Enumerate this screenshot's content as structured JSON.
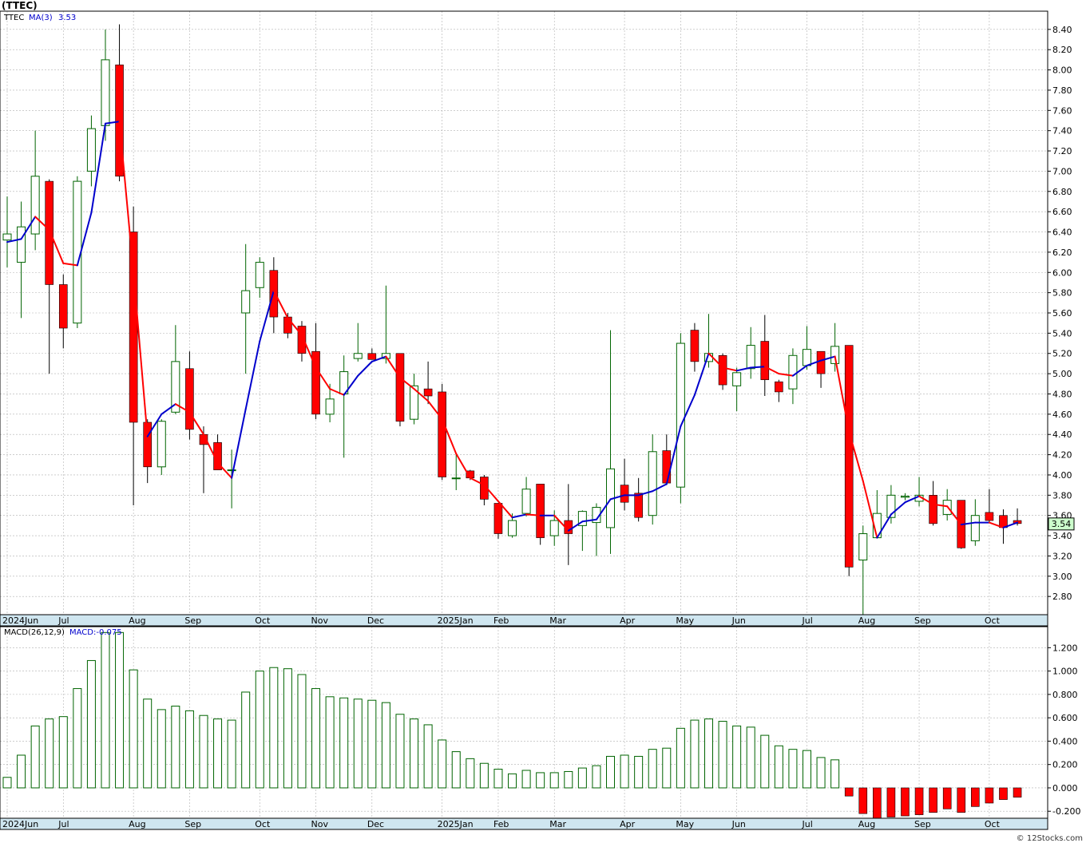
{
  "header": {
    "title": "(TTEC)",
    "legend_symbol": "TTEC",
    "legend_ma_label": "MA(3)",
    "legend_ma_value": "3.53",
    "macd_label": "MACD(26,12,9)",
    "macd_value_label": "MACD:-0.075",
    "last_price_badge": "3.54",
    "watermark": "© 12Stocks.com"
  },
  "colors": {
    "up_candle": "#006400",
    "down_candle": "#ff0000",
    "ma_up": "#0000cc",
    "ma_down": "#ff0000",
    "grid": "#b0b0b0",
    "axis_band": "#cfe6f0",
    "badge_fill": "#ccffcc"
  },
  "chart_data": [
    {
      "type": "candlestick",
      "title": "(TTEC)",
      "ylim": [
        2.62,
        8.58
      ],
      "y_ticks": [
        "8.40",
        "8.20",
        "8.00",
        "7.80",
        "7.60",
        "7.40",
        "7.20",
        "7.00",
        "6.80",
        "6.60",
        "6.40",
        "6.20",
        "6.00",
        "5.80",
        "5.60",
        "5.40",
        "5.20",
        "5.00",
        "4.80",
        "4.60",
        "4.40",
        "4.20",
        "4.00",
        "3.80",
        "3.60",
        "3.40",
        "3.20",
        "3.00",
        "2.80"
      ],
      "x_labels": [
        {
          "label": "2024Jun",
          "week": 0
        },
        {
          "label": "Jul",
          "week": 4
        },
        {
          "label": "Aug",
          "week": 9
        },
        {
          "label": "Sep",
          "week": 13
        },
        {
          "label": "Oct",
          "week": 18
        },
        {
          "label": "Nov",
          "week": 22
        },
        {
          "label": "Dec",
          "week": 26
        },
        {
          "label": "2025Jan",
          "week": 31
        },
        {
          "label": "Feb",
          "week": 35
        },
        {
          "label": "Mar",
          "week": 39
        },
        {
          "label": "Apr",
          "week": 44
        },
        {
          "label": "May",
          "week": 48
        },
        {
          "label": "Jun",
          "week": 52
        },
        {
          "label": "Jul",
          "week": 57
        },
        {
          "label": "Aug",
          "week": 61
        },
        {
          "label": "Sep",
          "week": 65
        },
        {
          "label": "Oct",
          "week": 70
        }
      ],
      "weeks": [
        {
          "o": 6.32,
          "h": 6.75,
          "l": 6.05,
          "c": 6.38
        },
        {
          "o": 6.1,
          "h": 6.7,
          "l": 5.55,
          "c": 6.45
        },
        {
          "o": 6.38,
          "h": 7.4,
          "l": 6.22,
          "c": 6.95
        },
        {
          "o": 6.9,
          "h": 6.92,
          "l": 5.0,
          "c": 5.88
        },
        {
          "o": 5.88,
          "h": 5.98,
          "l": 5.25,
          "c": 5.45
        },
        {
          "o": 5.5,
          "h": 6.95,
          "l": 5.45,
          "c": 6.9
        },
        {
          "o": 7.0,
          "h": 7.55,
          "l": 6.85,
          "c": 7.42
        },
        {
          "o": 7.45,
          "h": 8.4,
          "l": 7.3,
          "c": 8.1
        },
        {
          "o": 8.05,
          "h": 8.45,
          "l": 6.9,
          "c": 6.95
        },
        {
          "o": 6.4,
          "h": 6.65,
          "l": 3.7,
          "c": 4.52
        },
        {
          "o": 4.52,
          "h": 4.55,
          "l": 3.92,
          "c": 4.08
        },
        {
          "o": 4.08,
          "h": 4.55,
          "l": 4.0,
          "c": 4.53
        },
        {
          "o": 4.62,
          "h": 5.48,
          "l": 4.6,
          "c": 5.12
        },
        {
          "o": 5.05,
          "h": 5.22,
          "l": 4.35,
          "c": 4.45
        },
        {
          "o": 4.4,
          "h": 4.48,
          "l": 3.82,
          "c": 4.3
        },
        {
          "o": 4.32,
          "h": 4.4,
          "l": 4.05,
          "c": 4.05
        },
        {
          "o": 4.05,
          "h": 4.25,
          "l": 3.67,
          "c": 4.05
        },
        {
          "o": 5.6,
          "h": 6.28,
          "l": 5.0,
          "c": 5.82
        },
        {
          "o": 5.85,
          "h": 6.15,
          "l": 5.75,
          "c": 6.1
        },
        {
          "o": 6.02,
          "h": 6.15,
          "l": 5.4,
          "c": 5.56
        },
        {
          "o": 5.56,
          "h": 5.6,
          "l": 5.35,
          "c": 5.4
        },
        {
          "o": 5.47,
          "h": 5.52,
          "l": 5.12,
          "c": 5.2
        },
        {
          "o": 5.22,
          "h": 5.5,
          "l": 4.55,
          "c": 4.6
        },
        {
          "o": 4.6,
          "h": 4.9,
          "l": 4.52,
          "c": 4.75
        },
        {
          "o": 4.8,
          "h": 5.18,
          "l": 4.17,
          "c": 5.02
        },
        {
          "o": 5.15,
          "h": 5.5,
          "l": 5.12,
          "c": 5.2
        },
        {
          "o": 5.2,
          "h": 5.25,
          "l": 5.16,
          "c": 5.14
        },
        {
          "o": 5.15,
          "h": 5.87,
          "l": 5.1,
          "c": 5.2
        },
        {
          "o": 5.2,
          "h": 5.2,
          "l": 4.48,
          "c": 4.53
        },
        {
          "o": 4.55,
          "h": 5.0,
          "l": 4.5,
          "c": 4.88
        },
        {
          "o": 4.85,
          "h": 5.12,
          "l": 4.7,
          "c": 4.78
        },
        {
          "o": 4.82,
          "h": 4.9,
          "l": 3.95,
          "c": 3.98
        },
        {
          "o": 3.97,
          "h": 4.2,
          "l": 3.85,
          "c": 3.97
        },
        {
          "o": 4.04,
          "h": 4.05,
          "l": 3.95,
          "c": 3.97
        },
        {
          "o": 3.98,
          "h": 4.0,
          "l": 3.7,
          "c": 3.76
        },
        {
          "o": 3.72,
          "h": 3.72,
          "l": 3.37,
          "c": 3.42
        },
        {
          "o": 3.4,
          "h": 3.62,
          "l": 3.38,
          "c": 3.55
        },
        {
          "o": 3.62,
          "h": 3.98,
          "l": 3.59,
          "c": 3.86
        },
        {
          "o": 3.91,
          "h": 3.91,
          "l": 3.31,
          "c": 3.38
        },
        {
          "o": 3.4,
          "h": 3.65,
          "l": 3.3,
          "c": 3.55
        },
        {
          "o": 3.55,
          "h": 3.91,
          "l": 3.11,
          "c": 3.42
        },
        {
          "o": 3.5,
          "h": 3.65,
          "l": 3.25,
          "c": 3.64
        },
        {
          "o": 3.53,
          "h": 3.72,
          "l": 3.2,
          "c": 3.68
        },
        {
          "o": 3.48,
          "h": 5.43,
          "l": 3.22,
          "c": 4.06
        },
        {
          "o": 3.9,
          "h": 4.16,
          "l": 3.65,
          "c": 3.73
        },
        {
          "o": 3.82,
          "h": 3.97,
          "l": 3.54,
          "c": 3.58
        },
        {
          "o": 3.6,
          "h": 4.4,
          "l": 3.51,
          "c": 4.23
        },
        {
          "o": 4.24,
          "h": 4.4,
          "l": 3.9,
          "c": 3.92
        },
        {
          "o": 3.88,
          "h": 5.4,
          "l": 3.72,
          "c": 5.3
        },
        {
          "o": 5.43,
          "h": 5.5,
          "l": 5.02,
          "c": 5.12
        },
        {
          "o": 5.12,
          "h": 5.59,
          "l": 5.06,
          "c": 5.2
        },
        {
          "o": 5.18,
          "h": 5.2,
          "l": 4.84,
          "c": 4.89
        },
        {
          "o": 4.88,
          "h": 5.06,
          "l": 4.63,
          "c": 5.01
        },
        {
          "o": 5.05,
          "h": 5.46,
          "l": 4.95,
          "c": 5.28
        },
        {
          "o": 5.32,
          "h": 5.58,
          "l": 4.78,
          "c": 4.94
        },
        {
          "o": 4.92,
          "h": 4.94,
          "l": 4.72,
          "c": 4.82
        },
        {
          "o": 4.85,
          "h": 5.25,
          "l": 4.7,
          "c": 5.18
        },
        {
          "o": 5.08,
          "h": 5.47,
          "l": 5.04,
          "c": 5.24
        },
        {
          "o": 5.22,
          "h": 5.22,
          "l": 4.86,
          "c": 5.0
        },
        {
          "o": 5.1,
          "h": 5.5,
          "l": 5.02,
          "c": 5.27
        },
        {
          "o": 5.28,
          "h": 5.28,
          "l": 3.0,
          "c": 3.09
        },
        {
          "o": 3.16,
          "h": 3.5,
          "l": 2.62,
          "c": 3.42
        },
        {
          "o": 3.38,
          "h": 3.85,
          "l": 3.38,
          "c": 3.62
        },
        {
          "o": 3.58,
          "h": 3.9,
          "l": 3.52,
          "c": 3.8
        },
        {
          "o": 3.78,
          "h": 3.82,
          "l": 3.75,
          "c": 3.79
        },
        {
          "o": 3.74,
          "h": 3.98,
          "l": 3.69,
          "c": 3.8
        },
        {
          "o": 3.8,
          "h": 3.94,
          "l": 3.5,
          "c": 3.52
        },
        {
          "o": 3.61,
          "h": 3.86,
          "l": 3.55,
          "c": 3.75
        },
        {
          "o": 3.75,
          "h": 3.75,
          "l": 3.27,
          "c": 3.28
        },
        {
          "o": 3.35,
          "h": 3.76,
          "l": 3.3,
          "c": 3.6
        },
        {
          "o": 3.63,
          "h": 3.86,
          "l": 3.53,
          "c": 3.55
        },
        {
          "o": 3.6,
          "h": 3.66,
          "l": 3.32,
          "c": 3.48
        },
        {
          "o": 3.55,
          "h": 3.67,
          "l": 3.5,
          "c": 3.52
        }
      ],
      "ma3": [
        6.3,
        6.33,
        6.55,
        6.42,
        6.09,
        6.07,
        6.59,
        7.47,
        7.49,
        6.0,
        4.38,
        4.6,
        4.7,
        4.62,
        4.4,
        4.12,
        3.97,
        4.65,
        5.32,
        5.82,
        5.55,
        5.38,
        5.06,
        4.85,
        4.79,
        4.98,
        5.12,
        5.17,
        4.96,
        4.85,
        4.73,
        4.55,
        4.21,
        3.97,
        3.9,
        3.74,
        3.58,
        3.61,
        3.6,
        3.6,
        3.45,
        3.54,
        3.56,
        3.76,
        3.8,
        3.8,
        3.84,
        3.91,
        4.48,
        4.79,
        5.2,
        5.06,
        5.03,
        5.06,
        5.07,
        5.0,
        4.98,
        5.08,
        5.13,
        5.17,
        4.43,
        3.94,
        3.38,
        3.61,
        3.73,
        3.79,
        3.71,
        3.69,
        3.51,
        3.53,
        3.53,
        3.48,
        3.53
      ]
    },
    {
      "type": "bar",
      "title": "MACD(26,12,9)",
      "ylim": [
        -0.26,
        1.38
      ],
      "y_ticks": [
        "1.200",
        "1.000",
        "0.800",
        "0.600",
        "0.400",
        "0.200",
        "0.000",
        "-0.200"
      ],
      "values": [
        0.09,
        0.28,
        0.53,
        0.59,
        0.61,
        0.85,
        1.09,
        1.33,
        1.33,
        1.01,
        0.76,
        0.67,
        0.7,
        0.66,
        0.62,
        0.59,
        0.58,
        0.82,
        1.0,
        1.03,
        1.02,
        0.97,
        0.85,
        0.78,
        0.77,
        0.76,
        0.75,
        0.73,
        0.63,
        0.59,
        0.54,
        0.41,
        0.31,
        0.25,
        0.21,
        0.16,
        0.12,
        0.15,
        0.13,
        0.13,
        0.14,
        0.17,
        0.19,
        0.27,
        0.28,
        0.27,
        0.33,
        0.34,
        0.51,
        0.58,
        0.59,
        0.57,
        0.53,
        0.52,
        0.45,
        0.36,
        0.33,
        0.32,
        0.26,
        0.24,
        -0.07,
        -0.22,
        -0.26,
        -0.25,
        -0.24,
        -0.23,
        -0.21,
        -0.18,
        -0.21,
        -0.16,
        -0.13,
        -0.1,
        -0.08
      ]
    }
  ]
}
